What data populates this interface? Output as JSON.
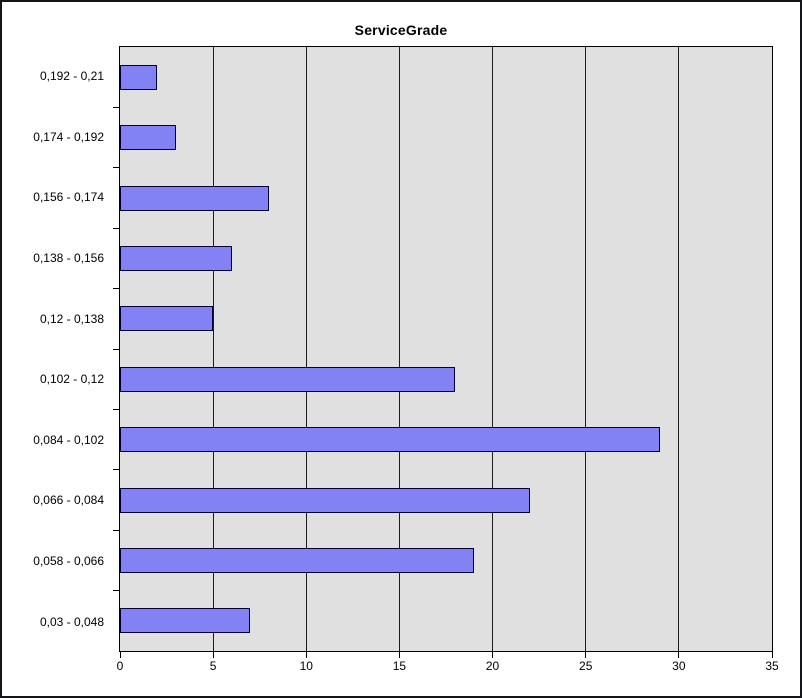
{
  "chart_data": {
    "type": "bar",
    "orientation": "horizontal",
    "title": "ServiceGrade",
    "categories": [
      "0,192 - 0,21",
      "0,174 - 0,192",
      "0,156 - 0,174",
      "0,138 - 0,156",
      "0,12 - 0,138",
      "0,102 - 0,12",
      "0,084 - 0,102",
      "0,066 - 0,084",
      "0,058 - 0,066",
      "0,03 - 0,048"
    ],
    "values": [
      2,
      3,
      8,
      6,
      5,
      18,
      29,
      22,
      19,
      7
    ],
    "xlabel": "",
    "ylabel": "",
    "xlim": [
      0,
      35
    ],
    "x_ticks": [
      0,
      5,
      10,
      15,
      20,
      25,
      30,
      35
    ],
    "grid": "vertical-only",
    "legend": "none",
    "colors": {
      "bar_fill": "#8282f5",
      "bar_border": "#000033",
      "plot_background": "#e0e0e0",
      "plot_border": "#000000",
      "gridline": "#1c1c1c",
      "text": "#000000",
      "outer_border": "#13151a",
      "page_background": "#ffffff"
    }
  }
}
